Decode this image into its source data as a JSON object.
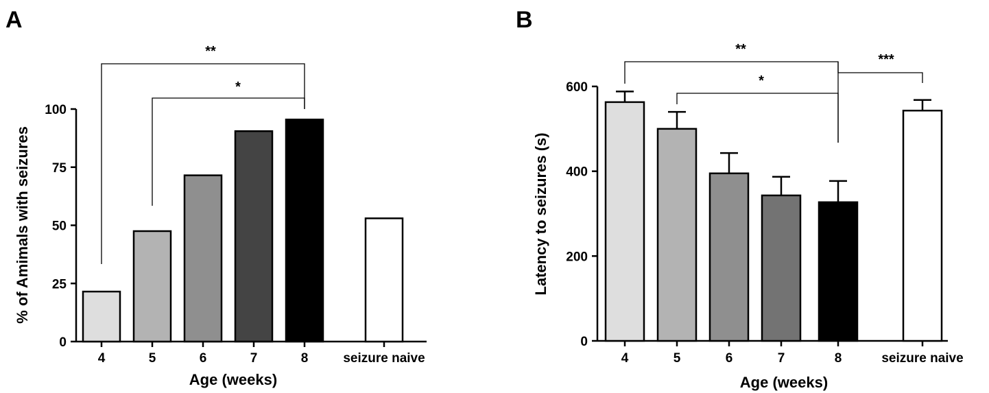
{
  "panels": [
    {
      "letter": "A",
      "chart_data": {
        "type": "bar",
        "categories": [
          "4",
          "5",
          "6",
          "7",
          "8",
          "seizure naive"
        ],
        "values": [
          21.5,
          47.5,
          71.5,
          90.5,
          95.5,
          53
        ],
        "colors": [
          "#dedede",
          "#b3b3b3",
          "#8f8f8f",
          "#444444",
          "#000000",
          "#ffffff"
        ],
        "title": "",
        "xlabel": "Age (weeks)",
        "ylabel": "% of Amimals with seizures",
        "ylim": [
          0,
          100
        ],
        "yticks": [
          "0",
          "25",
          "50",
          "75",
          "100"
        ],
        "annotations": [
          {
            "label": "**",
            "from": "4",
            "to": "8"
          },
          {
            "label": "*",
            "from": "5",
            "to": "8"
          }
        ]
      }
    },
    {
      "letter": "B",
      "chart_data": {
        "type": "bar",
        "categories": [
          "4",
          "5",
          "6",
          "7",
          "8",
          "seizure naive"
        ],
        "values": [
          563,
          500,
          395,
          343,
          327,
          543
        ],
        "errors": [
          25,
          40,
          48,
          44,
          50,
          25
        ],
        "colors": [
          "#dedede",
          "#b3b3b3",
          "#8f8f8f",
          "#737373",
          "#000000",
          "#ffffff"
        ],
        "title": "",
        "xlabel": "Age (weeks)",
        "ylabel": "Latency to seizures (s)",
        "ylim": [
          0,
          600
        ],
        "yticks": [
          "0",
          "200",
          "400",
          "600"
        ],
        "annotations": [
          {
            "label": "**",
            "from": "4",
            "to": "8"
          },
          {
            "label": "*",
            "from": "5",
            "to": "8"
          },
          {
            "label": "***",
            "from": "8",
            "to": "seizure naive"
          }
        ]
      }
    }
  ]
}
